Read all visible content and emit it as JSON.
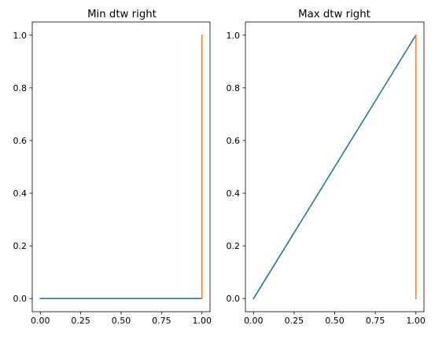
{
  "chart_data": [
    {
      "type": "line",
      "title": "Min dtw right",
      "xlabel": "",
      "ylabel": "",
      "xlim": [
        -0.05,
        1.05
      ],
      "ylim": [
        -0.05,
        1.05
      ],
      "xticks": [
        "0.00",
        "0.25",
        "0.50",
        "0.75",
        "1.00"
      ],
      "yticks": [
        "0.0",
        "0.2",
        "0.4",
        "0.6",
        "0.8",
        "1.0"
      ],
      "grid": false,
      "series": [
        {
          "color": "#1f77b4",
          "x": [
            0,
            1
          ],
          "y": [
            0,
            0
          ]
        },
        {
          "color": "#ff7f0e",
          "x": [
            1,
            1
          ],
          "y": [
            0,
            1
          ]
        }
      ]
    },
    {
      "type": "line",
      "title": "Max dtw right",
      "xlabel": "",
      "ylabel": "",
      "xlim": [
        -0.05,
        1.05
      ],
      "ylim": [
        -0.05,
        1.05
      ],
      "xticks": [
        "0.00",
        "0.25",
        "0.50",
        "0.75",
        "1.00"
      ],
      "yticks": [
        "0.0",
        "0.2",
        "0.4",
        "0.6",
        "0.8",
        "1.0"
      ],
      "grid": false,
      "series": [
        {
          "color": "#1f77b4",
          "x": [
            0,
            1
          ],
          "y": [
            0,
            1
          ]
        },
        {
          "color": "#ff7f0e",
          "x": [
            1,
            1
          ],
          "y": [
            0,
            1
          ]
        }
      ]
    }
  ]
}
